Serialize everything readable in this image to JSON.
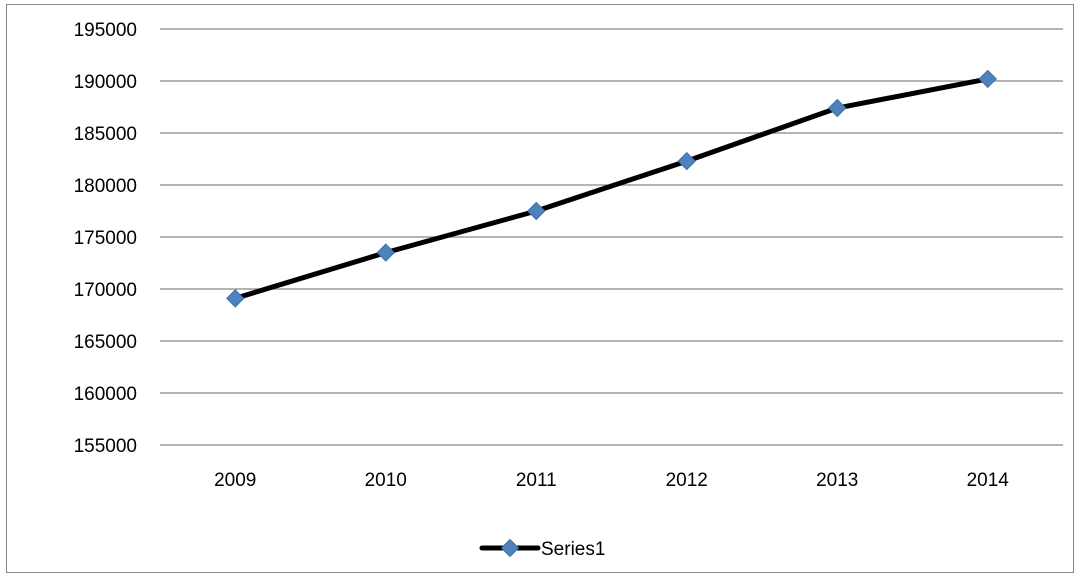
{
  "chart_data": {
    "type": "line",
    "title": "",
    "xlabel": "",
    "ylabel": "",
    "categories": [
      "2009",
      "2010",
      "2011",
      "2012",
      "2013",
      "2014"
    ],
    "series": [
      {
        "name": "Series1",
        "values": [
          169100,
          173500,
          177500,
          182300,
          187400,
          190200
        ],
        "line_color": "#000000",
        "marker": "diamond",
        "marker_color": "#4F81BD"
      }
    ],
    "ylim": [
      155000,
      195000
    ],
    "y_ticks": [
      "155000",
      "160000",
      "165000",
      "170000",
      "175000",
      "180000",
      "185000",
      "190000",
      "195000"
    ],
    "grid": true,
    "legend_position": "bottom",
    "colors": {
      "gridline": "#868686",
      "frame_border": "#878787"
    }
  }
}
